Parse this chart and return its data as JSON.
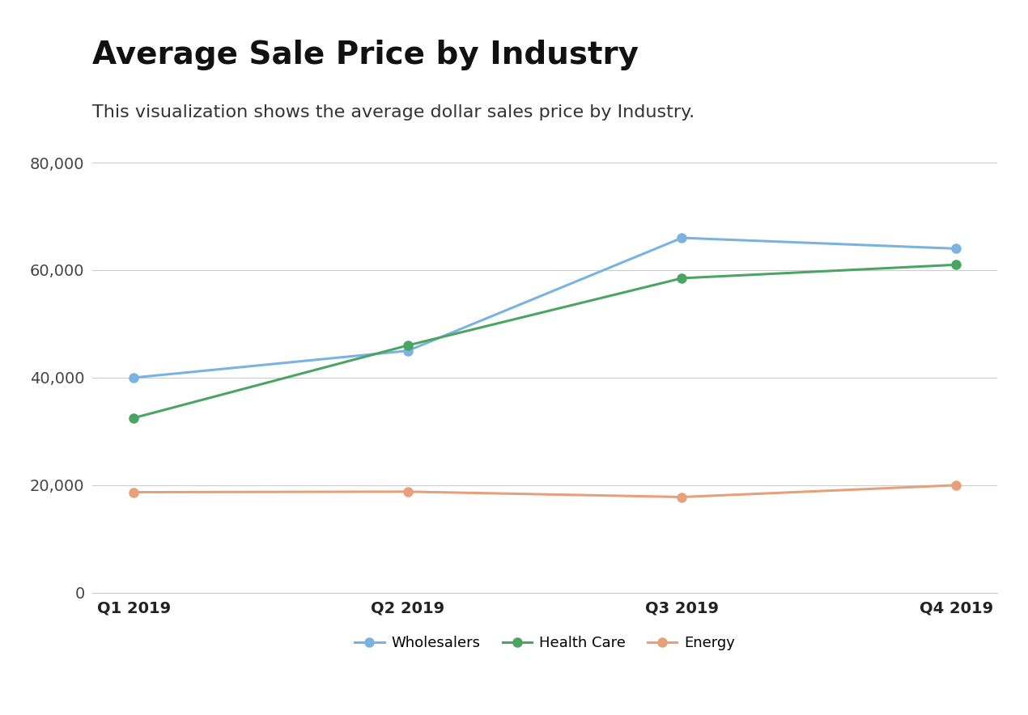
{
  "title": "Average Sale Price by Industry",
  "subtitle": "This visualization shows the average dollar sales price by Industry.",
  "x_labels": [
    "Q1 2019",
    "Q2 2019",
    "Q3 2019",
    "Q4 2019"
  ],
  "series": [
    {
      "name": "Wholesalers",
      "values": [
        40000,
        45000,
        66000,
        64000
      ],
      "color": "#7ab3e0",
      "marker": "o"
    },
    {
      "name": "Health Care",
      "values": [
        32500,
        46000,
        58500,
        61000
      ],
      "color": "#4aa564",
      "marker": "o"
    },
    {
      "name": "Energy",
      "values": [
        18700,
        18800,
        17800,
        20000
      ],
      "color": "#e8a07a",
      "marker": "o"
    }
  ],
  "ylim": [
    0,
    85000
  ],
  "yticks": [
    0,
    20000,
    40000,
    60000,
    80000
  ],
  "background_color": "#ffffff",
  "grid_color": "#cccccc",
  "title_fontsize": 28,
  "subtitle_fontsize": 16,
  "tick_fontsize": 14,
  "legend_fontsize": 13,
  "line_width": 2.2,
  "marker_size": 8
}
